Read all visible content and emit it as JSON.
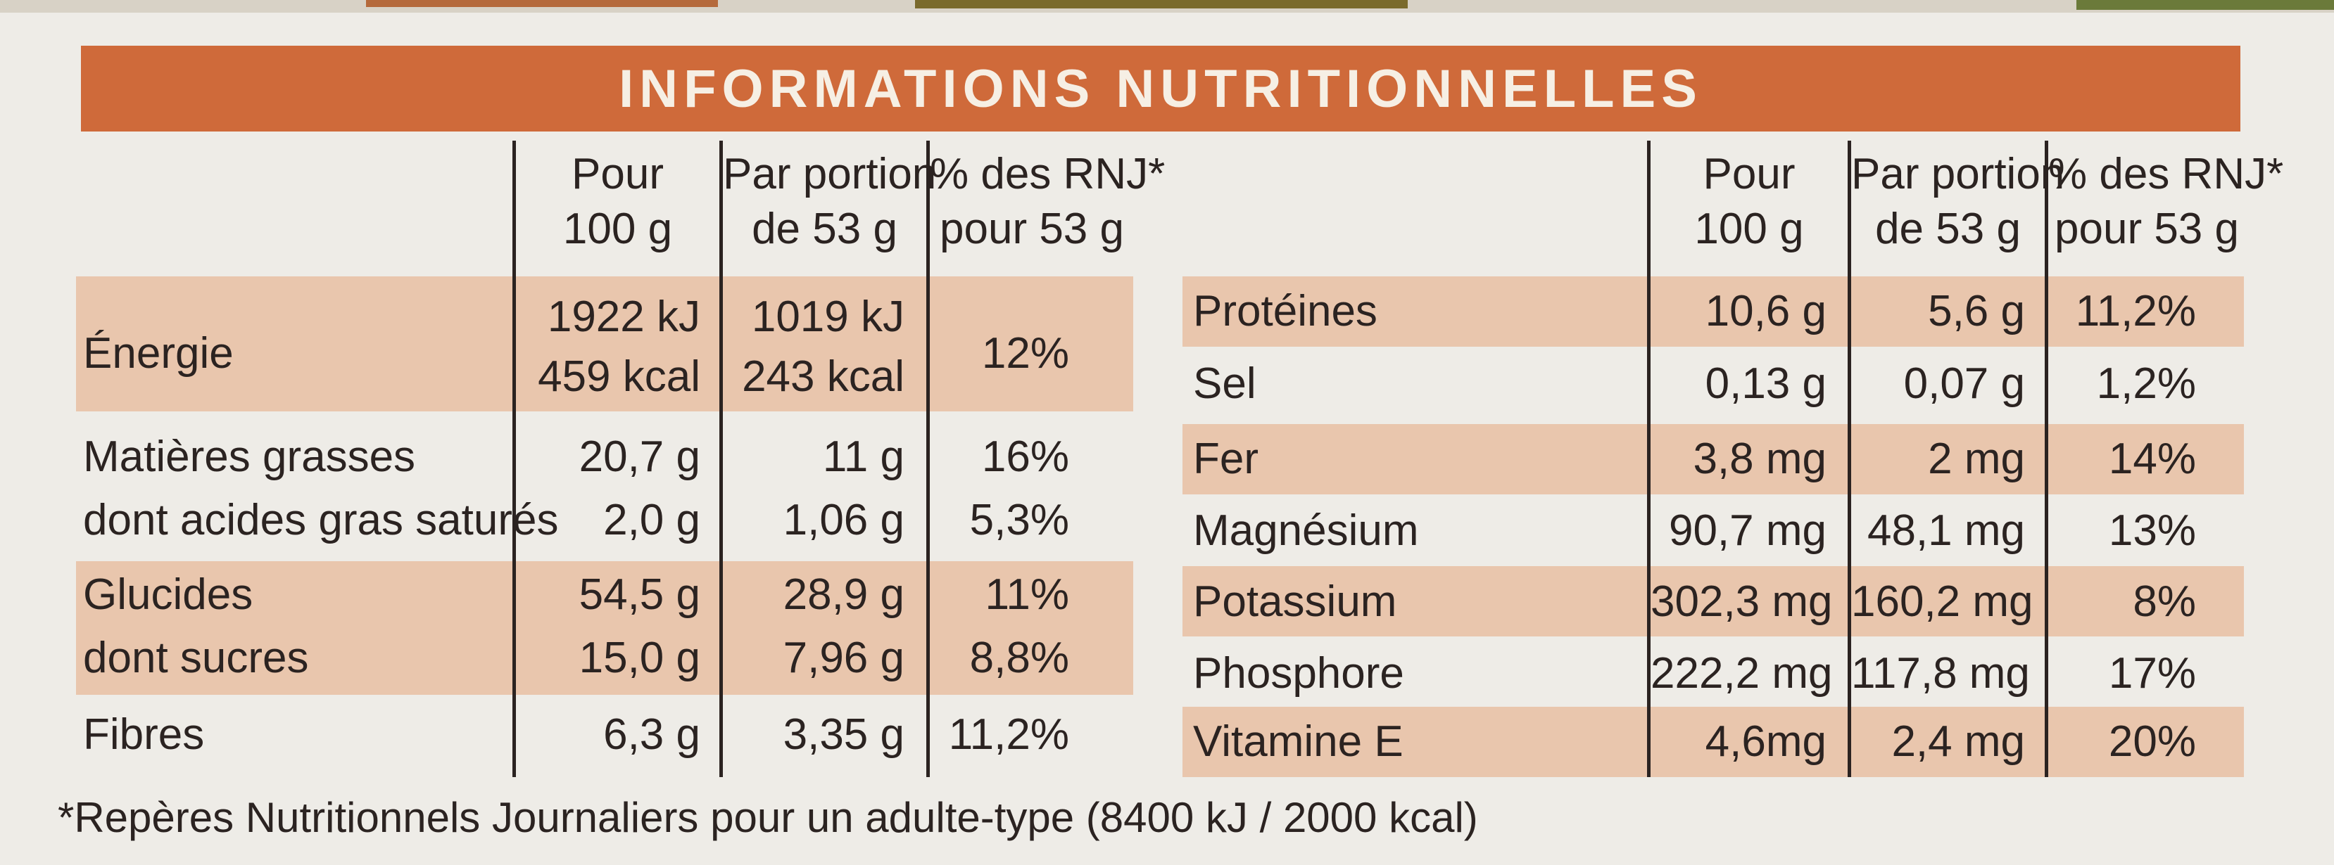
{
  "title": "INFORMATIONS NUTRITIONNELLES",
  "headers": {
    "per100_1": "Pour",
    "per100_2": "100 g",
    "portion_1": "Par portion",
    "portion_2": "de 53 g",
    "rnj_1": "% des RNJ*",
    "rnj_2": "pour 53 g"
  },
  "left_rows": [
    {
      "label": "Énergie",
      "per100_a": "1922 kJ",
      "per100_b": "459 kcal",
      "portion_a": "1019 kJ",
      "portion_b": "243 kcal",
      "rnj": "12%"
    },
    {
      "label": "Matières grasses",
      "per100": "20,7 g",
      "portion": "11 g",
      "rnj": "16%"
    },
    {
      "label": "dont acides gras saturés",
      "per100": "2,0 g",
      "portion": "1,06 g",
      "rnj": "5,3%"
    },
    {
      "label": "Glucides",
      "per100": "54,5 g",
      "portion": "28,9 g",
      "rnj": "11%"
    },
    {
      "label": "dont sucres",
      "per100": "15,0 g",
      "portion": "7,96 g",
      "rnj": "8,8%"
    },
    {
      "label": "Fibres",
      "per100": "6,3 g",
      "portion": "3,35 g",
      "rnj": "11,2%"
    }
  ],
  "right_rows": [
    {
      "label": "Protéines",
      "per100": "10,6 g",
      "portion": "5,6 g",
      "rnj": "11,2%"
    },
    {
      "label": "Sel",
      "per100": "0,13 g",
      "portion": "0,07 g",
      "rnj": "1,2%"
    },
    {
      "label": "Fer",
      "per100": "3,8 mg",
      "portion": "2 mg",
      "rnj": "14%"
    },
    {
      "label": "Magnésium",
      "per100": "90,7 mg",
      "portion": "48,1 mg",
      "rnj": "13%"
    },
    {
      "label": "Potassium",
      "per100": "302,3 mg",
      "portion": "160,2 mg",
      "rnj": "8%"
    },
    {
      "label": "Phosphore",
      "per100": "222,2 mg",
      "portion": "117,8 mg",
      "rnj": "17%"
    },
    {
      "label": "Vitamine E",
      "per100": "4,6mg",
      "portion": "2,4 mg",
      "rnj": "20%"
    }
  ],
  "footnote": "*Repères Nutritionnels Journaliers pour un adulte-type  (8400 kJ / 2000 kcal)",
  "colors": {
    "header": "#cf6a3a",
    "band": "#e9c6ad",
    "background": "#eeece7"
  }
}
